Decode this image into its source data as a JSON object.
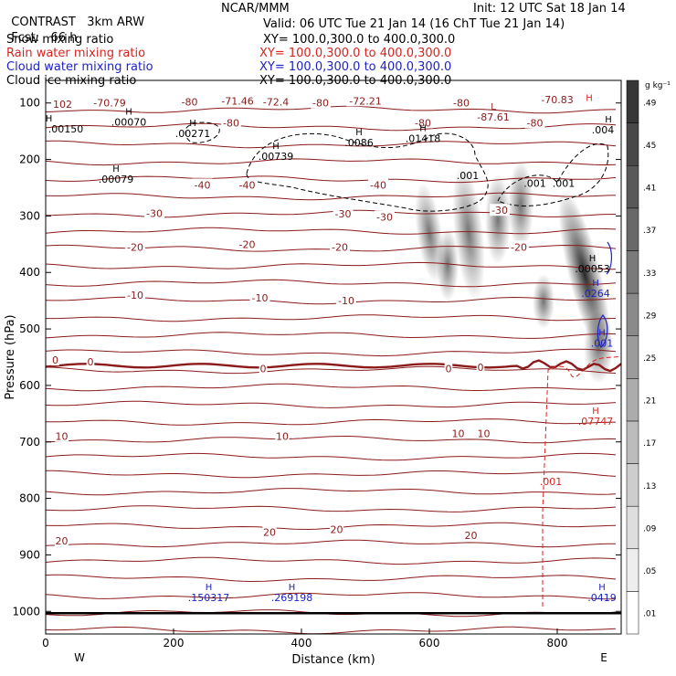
{
  "header": {
    "left_title": "CONTRAST",
    "model": "3km ARW",
    "org": "NCAR/MMM",
    "init": "Init: 12 UTC Sat 18 Jan 14",
    "fcst_label": "Fcst:",
    "fcst_value": "66 h",
    "valid": "Valid: 06 UTC Tue 21 Jan 14 (16 ChT Tue 21 Jan 14)"
  },
  "fields": [
    {
      "name": "Snow mixing ratio",
      "xy": "XY= 100.0,300.0 to 400.0,300.0",
      "color": "#000000"
    },
    {
      "name": "Rain water mixing ratio",
      "xy": "XY= 100.0,300.0 to 400.0,300.0",
      "color": "#d8231f"
    },
    {
      "name": "Cloud water mixing ratio",
      "xy": "XY= 100.0,300.0 to 400.0,300.0",
      "color": "#1d22c8"
    },
    {
      "name": "Cloud ice mixing ratio",
      "xy": "XY= 100.0,300.0 to 400.0,300.0",
      "color": "#000000"
    }
  ],
  "colors": {
    "temperature": "#8b1a1a",
    "rain": "#d8231f",
    "cloud_water": "#1d22c8",
    "cloud_ice": "#000000",
    "zero_isotherm": "#8b1a1a"
  },
  "chart_data": {
    "type": "cross-section",
    "xlabel": "Distance (km)",
    "ylabel": "Pressure (hPa)",
    "xlim": [
      0,
      900
    ],
    "ylim": [
      1040,
      60
    ],
    "x_ticks": [
      0,
      200,
      400,
      600,
      800
    ],
    "x_tick_labels": [
      "0",
      "200",
      "400",
      "600",
      "800"
    ],
    "y_ticks": [
      100,
      200,
      300,
      400,
      500,
      600,
      700,
      800,
      900,
      1000
    ],
    "y_tick_labels": [
      "100",
      "200",
      "300",
      "400",
      "500",
      "600",
      "700",
      "800",
      "900",
      "1000"
    ],
    "extra_y_label": {
      "value": 102,
      "text": "102"
    },
    "direction_labels": {
      "west": "W",
      "east": "E"
    },
    "colorbar": {
      "unit": "g kg⁻¹",
      "levels": [
        0.01,
        0.05,
        0.09,
        0.13,
        0.17,
        0.21,
        0.25,
        0.29,
        0.33,
        0.37,
        0.41,
        0.45,
        0.49
      ],
      "level_labels": [
        ".01",
        ".05",
        ".09",
        ".13",
        ".17",
        ".21",
        ".25",
        ".29",
        ".33",
        ".37",
        ".41",
        ".45",
        ".49"
      ]
    },
    "isotherm_labels": [
      {
        "x": 100,
        "p": 100,
        "text": "-70.79"
      },
      {
        "x": 225,
        "p": 98,
        "text": "-80"
      },
      {
        "x": 300,
        "p": 96,
        "text": "-71.46"
      },
      {
        "x": 360,
        "p": 98,
        "text": "-72.4"
      },
      {
        "x": 430,
        "p": 100,
        "text": "-80"
      },
      {
        "x": 500,
        "p": 96,
        "text": "-72.21"
      },
      {
        "x": 650,
        "p": 100,
        "text": "-80"
      },
      {
        "x": 800,
        "p": 94,
        "text": "-70.83"
      },
      {
        "x": 290,
        "p": 135,
        "text": "-80"
      },
      {
        "x": 590,
        "p": 135,
        "text": "-80"
      },
      {
        "x": 765,
        "p": 135,
        "text": "-80"
      },
      {
        "x": 245,
        "p": 245,
        "text": "-40"
      },
      {
        "x": 315,
        "p": 245,
        "text": "-40"
      },
      {
        "x": 520,
        "p": 245,
        "text": "-40"
      },
      {
        "x": 170,
        "p": 295,
        "text": "-30"
      },
      {
        "x": 465,
        "p": 296,
        "text": "-30"
      },
      {
        "x": 530,
        "p": 302,
        "text": "-30"
      },
      {
        "x": 710,
        "p": 290,
        "text": "-30"
      },
      {
        "x": 140,
        "p": 355,
        "text": "-20"
      },
      {
        "x": 315,
        "p": 350,
        "text": "-20"
      },
      {
        "x": 460,
        "p": 355,
        "text": "-20"
      },
      {
        "x": 740,
        "p": 355,
        "text": "-20"
      },
      {
        "x": 140,
        "p": 440,
        "text": "-10"
      },
      {
        "x": 335,
        "p": 445,
        "text": "-10"
      },
      {
        "x": 470,
        "p": 450,
        "text": "-10"
      },
      {
        "x": 15,
        "p": 555,
        "text": "0"
      },
      {
        "x": 70,
        "p": 558,
        "text": "0"
      },
      {
        "x": 340,
        "p": 570,
        "text": "0"
      },
      {
        "x": 630,
        "p": 570,
        "text": "0"
      },
      {
        "x": 680,
        "p": 568,
        "text": "0"
      },
      {
        "x": 25,
        "p": 690,
        "text": "10"
      },
      {
        "x": 370,
        "p": 690,
        "text": "10"
      },
      {
        "x": 645,
        "p": 685,
        "text": "10"
      },
      {
        "x": 685,
        "p": 685,
        "text": "10"
      },
      {
        "x": 350,
        "p": 860,
        "text": "20"
      },
      {
        "x": 455,
        "p": 855,
        "text": "20"
      },
      {
        "x": 665,
        "p": 865,
        "text": "20"
      },
      {
        "x": 25,
        "p": 875,
        "text": "20"
      }
    ],
    "max_min_markers": [
      {
        "x": 5,
        "p": 133,
        "mark": "H",
        "value": ".00150",
        "color": "#000000"
      },
      {
        "x": 130,
        "p": 121,
        "mark": "H",
        "value": ".00070",
        "color": "#000000"
      },
      {
        "x": 230,
        "p": 141,
        "mark": "H",
        "value": ".00271",
        "color": "#000000"
      },
      {
        "x": 110,
        "p": 222,
        "mark": "H",
        "value": ".00079",
        "color": "#000000"
      },
      {
        "x": 360,
        "p": 181,
        "mark": "H",
        "value": ".00739",
        "color": "#000000"
      },
      {
        "x": 490,
        "p": 157,
        "mark": "H",
        "value": ".0086",
        "color": "#000000"
      },
      {
        "x": 590,
        "p": 150,
        "mark": "H",
        "value": ".01418",
        "color": "#000000"
      },
      {
        "x": 880,
        "p": 134,
        "mark": "H",
        "value": ".004",
        "color": "#000000"
      },
      {
        "x": 850,
        "p": 96,
        "mark": "H",
        "value": "",
        "color": "#d8231f"
      },
      {
        "x": 700,
        "p": 112,
        "mark": "L",
        "value": "-87.61",
        "color": "#8b1a1a"
      },
      {
        "x": 855,
        "p": 380,
        "mark": "H",
        "value": ".00053",
        "color": "#000000"
      },
      {
        "x": 860,
        "p": 424,
        "mark": "H",
        "value": ".0264",
        "color": "#1d22c8"
      },
      {
        "x": 870,
        "p": 512,
        "mark": "H",
        "value": ".001",
        "color": "#1d22c8"
      },
      {
        "x": 860,
        "p": 650,
        "mark": "H",
        "value": ".07747",
        "color": "#d8231f"
      },
      {
        "x": 255,
        "p": 962,
        "mark": "H",
        "value": ".150317",
        "color": "#1d22c8"
      },
      {
        "x": 385,
        "p": 962,
        "mark": "H",
        "value": ".269198",
        "color": "#1d22c8"
      },
      {
        "x": 870,
        "p": 962,
        "mark": "H",
        "value": ".0419",
        "color": "#1d22c8"
      }
    ],
    "contour_value_labels": [
      {
        "x": 660,
        "p": 228,
        "text": ".001",
        "color": "#000000"
      },
      {
        "x": 765,
        "p": 242,
        "text": ".001",
        "color": "#000000"
      },
      {
        "x": 810,
        "p": 242,
        "text": ".001",
        "color": "#000000"
      },
      {
        "x": 790,
        "p": 770,
        "text": ".001",
        "color": "#d8231f"
      }
    ]
  }
}
